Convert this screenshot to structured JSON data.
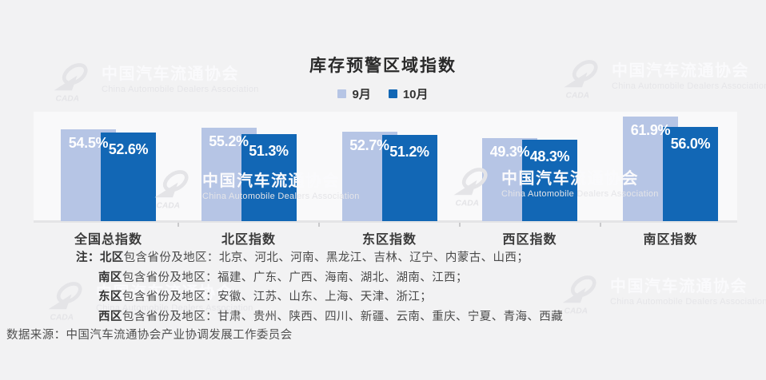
{
  "title": "库存预警区域指数",
  "chart_data": {
    "type": "bar",
    "title": "库存预警区域指数",
    "categories": [
      "全国总指数",
      "北区指数",
      "东区指数",
      "西区指数",
      "南区指数"
    ],
    "series": [
      {
        "name": "9月",
        "color": "#b6c5e5",
        "values": [
          54.5,
          55.2,
          52.7,
          49.3,
          61.9
        ]
      },
      {
        "name": "10月",
        "color": "#1267b5",
        "values": [
          52.6,
          51.3,
          51.2,
          48.3,
          56.0
        ]
      }
    ],
    "value_labels": [
      [
        "54.5%",
        "55.2%",
        "52.7%",
        "49.3%",
        "61.9%"
      ],
      [
        "52.6%",
        "51.3%",
        "51.2%",
        "48.3%",
        "56.0%"
      ]
    ],
    "value_suffix": "%",
    "ylim": [
      0,
      65
    ],
    "grid": false,
    "legend_position": "top",
    "value_label_color": "#ffffff",
    "axis_line_color": "#e4e4e6"
  },
  "notes": {
    "prefix": "注：",
    "lines": [
      {
        "region": "北区",
        "rest": "包含省份及地区：北京、河北、河南、黑龙江、吉林、辽宁、内蒙古、山西；"
      },
      {
        "region": "南区",
        "rest": "包含省份及地区：福建、广东、广西、海南、湖北、湖南、江西；"
      },
      {
        "region": "东区",
        "rest": "包含省份及地区：安徽、江苏、山东、上海、天津、浙江；"
      },
      {
        "region": "西区",
        "rest": "包含省份及地区：甘肃、贵州、陕西、四川、新疆、云南、重庆、宁夏、青海、西藏"
      }
    ]
  },
  "source": "数据来源：中国汽车流通协会产业协调发展工作委员会",
  "watermark": {
    "logo": "cada-swoosh-logo",
    "cada": "CADA",
    "zh": "中国汽车流通协会",
    "en": "China Automobile Dealers Association"
  },
  "colors": {
    "background": "#f2f2f3",
    "plot_band": "#f9f9fa",
    "bar_september": "#b6c5e5",
    "bar_october": "#1267b5",
    "title_text": "#2a2a2a",
    "notes_text": "#4a4a4a"
  }
}
